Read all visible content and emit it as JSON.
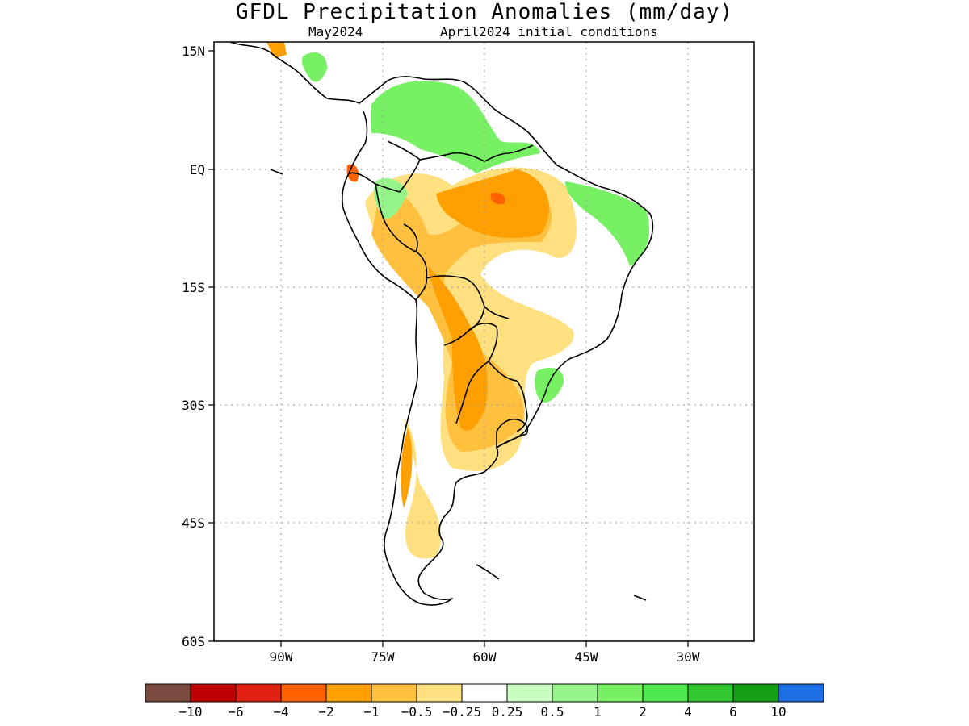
{
  "title": "GFDL Precipitation Anomalies (mm/day)",
  "subtitle_left": "May2024",
  "subtitle_right": "April2024 initial conditions",
  "map": {
    "y_ticks": [
      "15N",
      "EQ",
      "15S",
      "30S",
      "45S",
      "60S"
    ],
    "x_ticks": [
      "90W",
      "75W",
      "60W",
      "45W",
      "30W"
    ],
    "grid": "dotted"
  },
  "colorbar": {
    "colors": [
      "#7b4a3e",
      "#c00000",
      "#e02010",
      "#ff6000",
      "#ffa000",
      "#ffc040",
      "#ffe080",
      "#ffffff",
      "#c8ffc0",
      "#96f58a",
      "#78f064",
      "#50e850",
      "#32c832",
      "#14a014",
      "#1e6ee6"
    ],
    "labels": [
      "−10",
      "−6",
      "−4",
      "−2",
      "−1",
      "−0.5",
      "−0.25",
      "0.25",
      "0.5",
      "1",
      "2",
      "4",
      "6",
      "10"
    ]
  }
}
